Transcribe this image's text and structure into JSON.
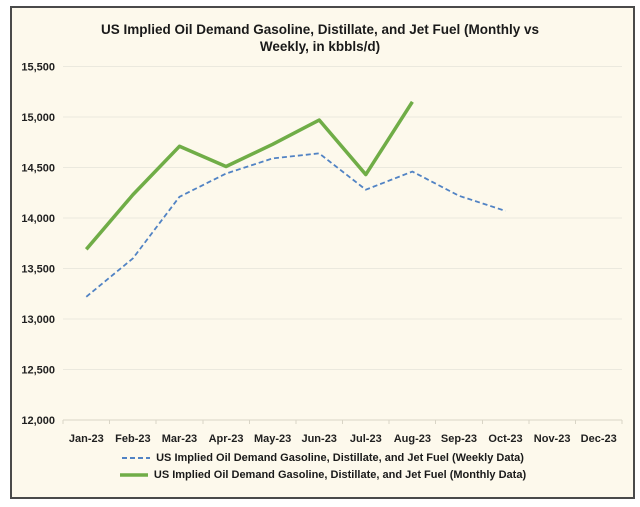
{
  "colors": {
    "plot_background": "#FDF9EC",
    "frame_border": "#4a4a4a",
    "gridline": "#EBE9DE",
    "axis_line": "#D9D5C6",
    "text": "#1f1f1f",
    "weekly_blue": "#5183C4",
    "monthly_green": "#70AD47"
  },
  "chart_data": {
    "type": "line",
    "title": "US Implied Oil Demand Gasoline, Distillate, and Jet Fuel (Monthly vs Weekly, in kbbls/d)",
    "categories": [
      "Jan-23",
      "Feb-23",
      "Mar-23",
      "Apr-23",
      "May-23",
      "Jun-23",
      "Jul-23",
      "Aug-23",
      "Sep-23",
      "Oct-23",
      "Nov-23",
      "Dec-23"
    ],
    "series": [
      {
        "name": "US Implied Oil Demand Gasoline, Distillate, and Jet Fuel (Weekly Data)",
        "style": "dashed",
        "color": "#5183C4",
        "values": [
          13220,
          13600,
          14210,
          14440,
          14590,
          14640,
          14280,
          14460,
          14220,
          14070,
          null,
          null
        ]
      },
      {
        "name": "US Implied Oil Demand Gasoline, Distillate, and Jet Fuel (Monthly Data)",
        "style": "solid",
        "color": "#70AD47",
        "values": [
          13690,
          14230,
          14710,
          14510,
          14730,
          14970,
          14430,
          15150,
          null,
          null,
          null,
          null
        ]
      }
    ],
    "ylim": [
      12000,
      15500
    ],
    "ytick_step": 500,
    "ytick_labels": [
      "12,000",
      "12,500",
      "13,000",
      "13,500",
      "14,000",
      "14,500",
      "15,000",
      "15,500"
    ],
    "grid": true,
    "legend_position": "bottom"
  }
}
